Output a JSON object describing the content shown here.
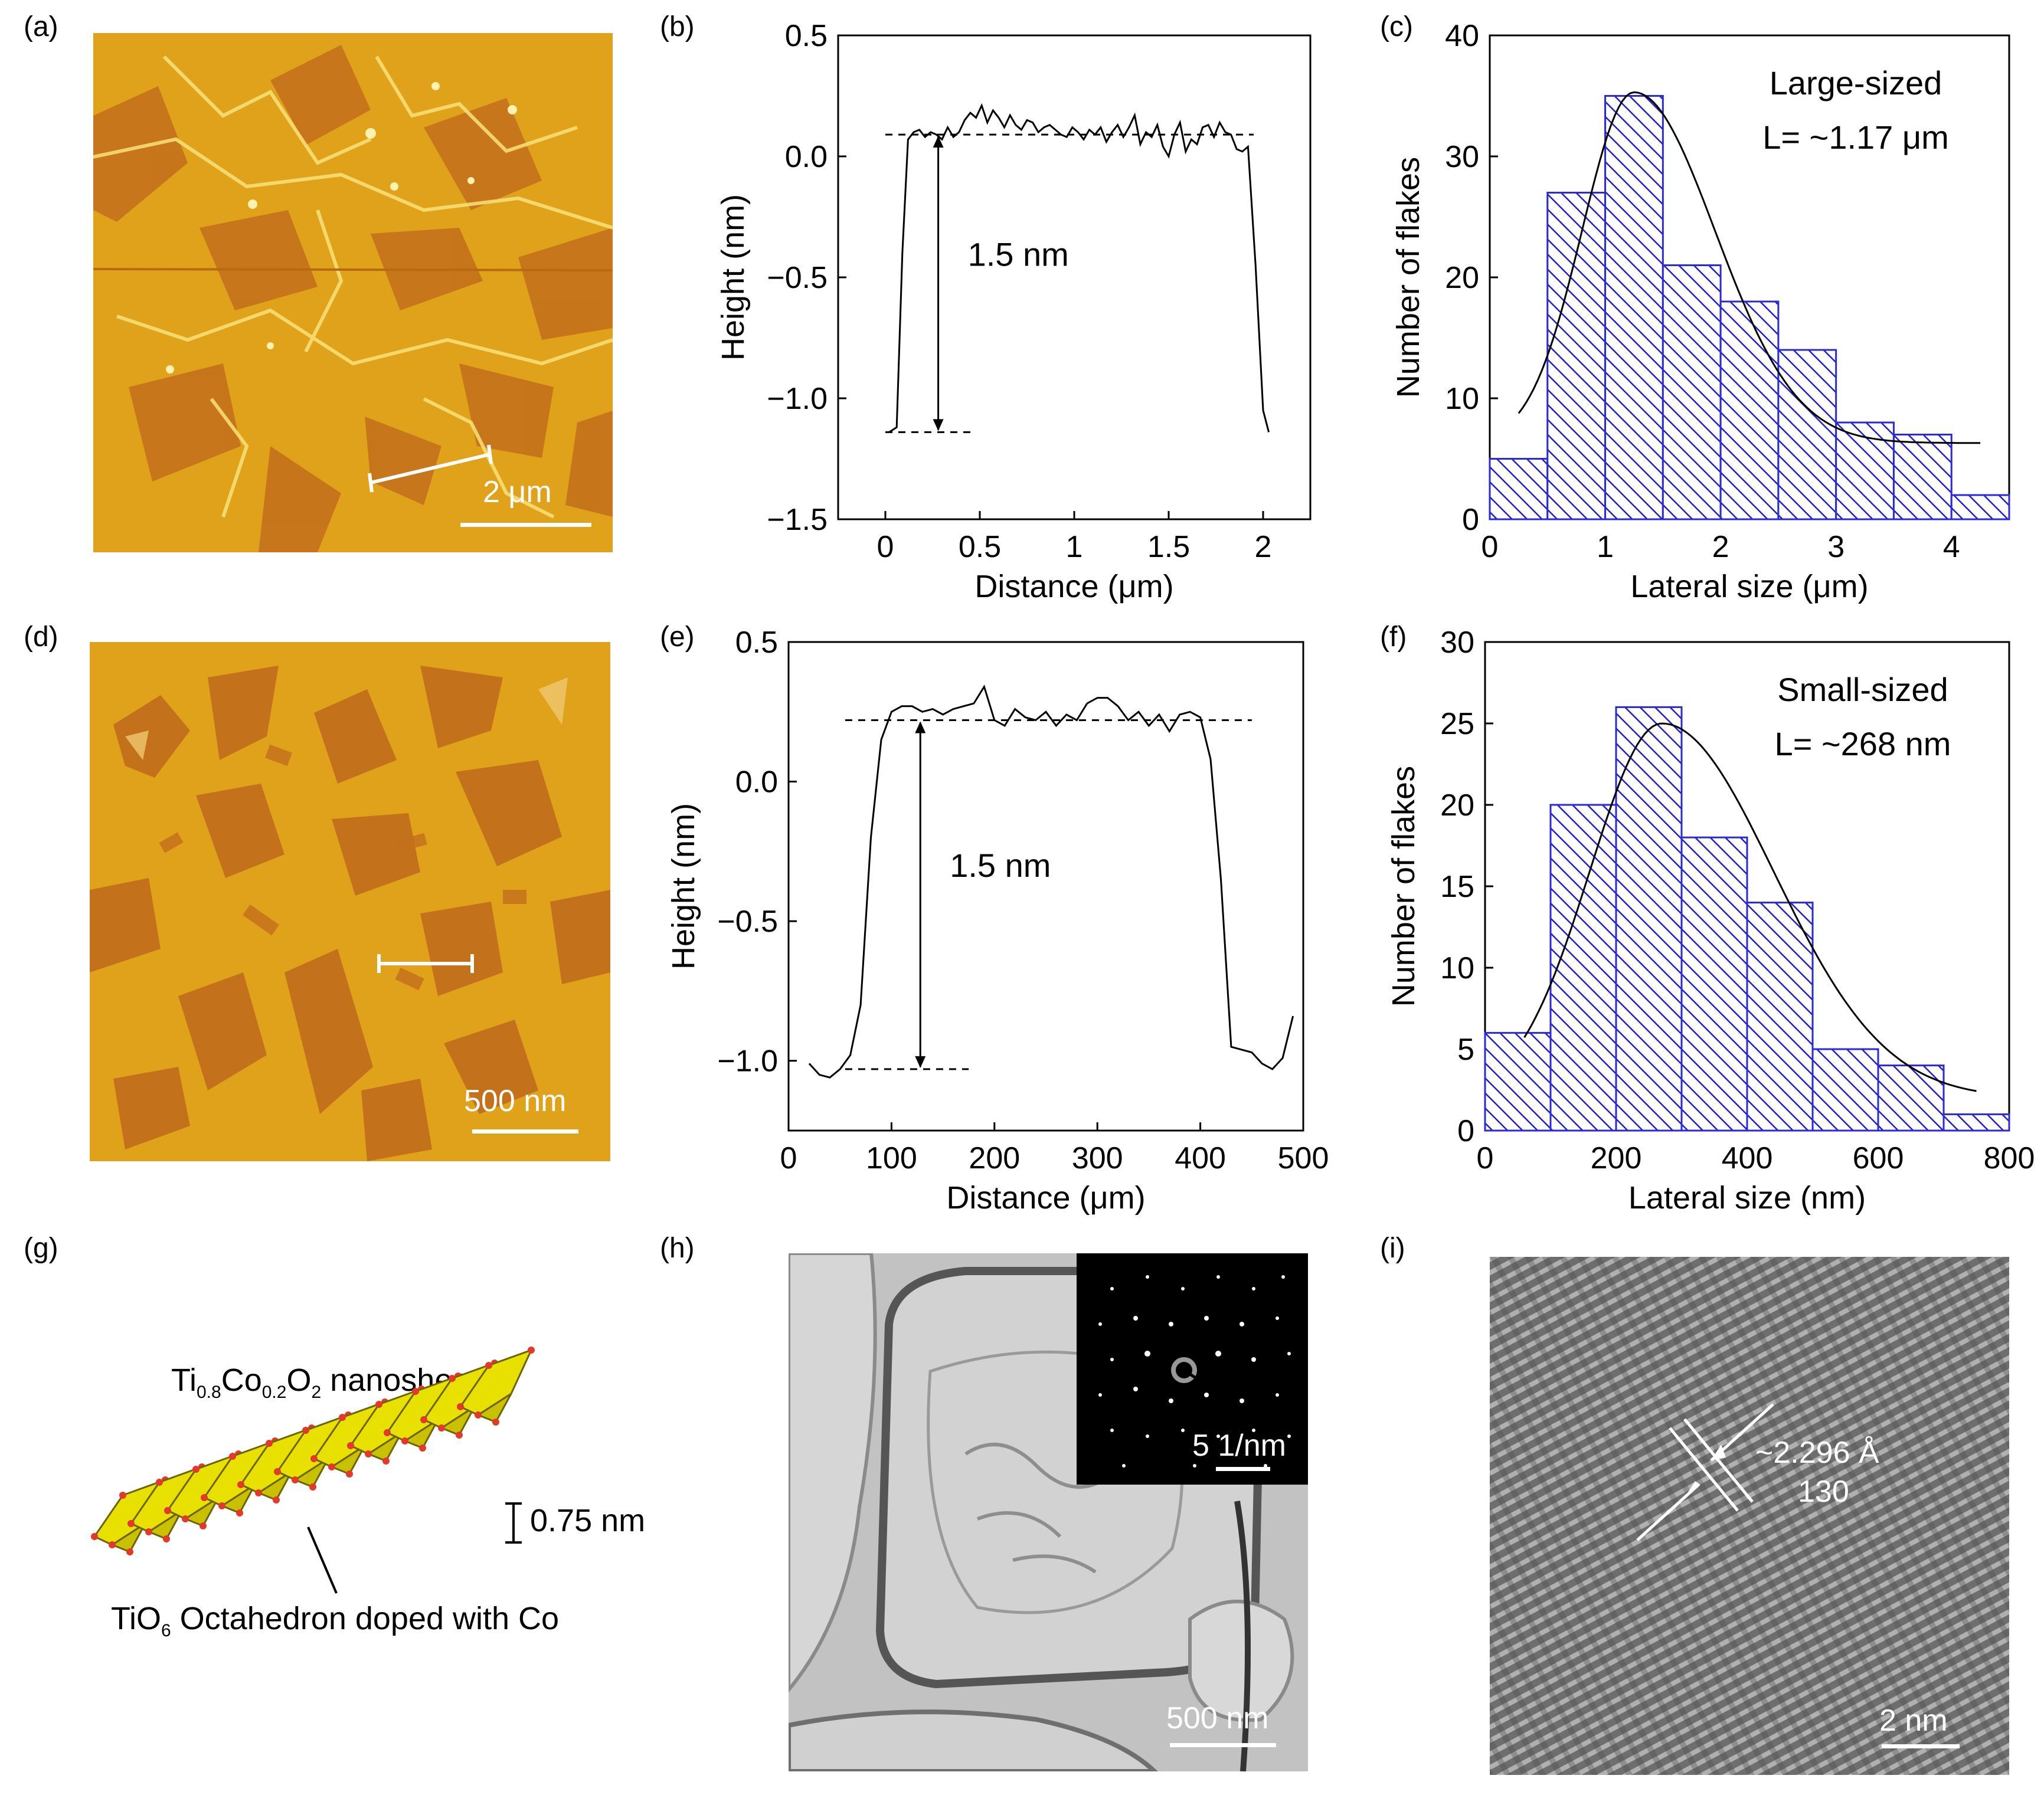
{
  "figure": {
    "panel_labels": [
      "(a)",
      "(b)",
      "(c)",
      "(d)",
      "(e)",
      "(f)",
      "(g)",
      "(h)",
      "(i)"
    ],
    "afm_colors": {
      "base": "#e0a21a",
      "dark": "#c4711c",
      "bright": "#f8e27a"
    },
    "panel_a": {
      "scale_label": "2 μm"
    },
    "panel_d": {
      "scale_label": "500 nm"
    },
    "panel_g": {
      "title_parts": [
        "Ti",
        "0.8",
        "Co",
        "0.2",
        "O",
        "2",
        " nanosheet"
      ],
      "thickness_label": "0.75 nm",
      "caption_parts": [
        "TiO",
        "6",
        " Octahedron doped with Co"
      ],
      "colors": {
        "octa_fill": "#e8e000",
        "octa_edge": "#6b6400",
        "oxygen": "#e23a2a"
      }
    },
    "panel_h": {
      "scale_label": "500 nm",
      "inset_scale_label": "5 1/nm"
    },
    "panel_i": {
      "d_spacing_label": "~2.296 Å",
      "plane_label": "130",
      "scale_label": "2 nm"
    }
  },
  "chart_data": [
    {
      "panel": "b",
      "type": "line",
      "xlabel": "Distance (μm)",
      "ylabel": "Height (nm)",
      "xlim": [
        -0.25,
        2.25
      ],
      "ylim": [
        -1.5,
        0.5
      ],
      "xticks": [
        0,
        0.5,
        1,
        1.5,
        2
      ],
      "xtick_labels": [
        "0",
        "0.5",
        "1",
        "1.5",
        "2"
      ],
      "yticks": [
        -1.5,
        -1.0,
        -0.5,
        0.0,
        0.5
      ],
      "ytick_labels": [
        "−1.5",
        "−1.0",
        "−0.5",
        "0.0",
        "0.5"
      ],
      "annotation": "1.5 nm",
      "levels": {
        "top": 0.09,
        "bottom": -1.14,
        "top_line_x": [
          0.0,
          1.95
        ],
        "bottom_line_x": [
          0.0,
          0.45
        ],
        "arrow_x": 0.28
      },
      "x": [
        0.02,
        0.06,
        0.09,
        0.12,
        0.15,
        0.18,
        0.21,
        0.24,
        0.27,
        0.3,
        0.33,
        0.36,
        0.39,
        0.42,
        0.45,
        0.48,
        0.51,
        0.54,
        0.57,
        0.6,
        0.63,
        0.66,
        0.69,
        0.72,
        0.75,
        0.78,
        0.81,
        0.84,
        0.87,
        0.9,
        0.93,
        0.96,
        0.99,
        1.02,
        1.05,
        1.08,
        1.11,
        1.14,
        1.17,
        1.2,
        1.23,
        1.26,
        1.29,
        1.32,
        1.35,
        1.38,
        1.41,
        1.44,
        1.47,
        1.5,
        1.53,
        1.56,
        1.59,
        1.62,
        1.65,
        1.68,
        1.71,
        1.74,
        1.77,
        1.8,
        1.83,
        1.86,
        1.89,
        1.92,
        1.96,
        2.0,
        2.03
      ],
      "y": [
        -1.14,
        -1.12,
        -0.4,
        0.07,
        0.1,
        0.11,
        0.08,
        0.1,
        0.09,
        0.07,
        0.12,
        0.08,
        0.1,
        0.15,
        0.18,
        0.16,
        0.21,
        0.14,
        0.19,
        0.16,
        0.12,
        0.17,
        0.13,
        0.11,
        0.15,
        0.14,
        0.1,
        0.12,
        0.13,
        0.11,
        0.09,
        0.08,
        0.12,
        0.1,
        0.07,
        0.11,
        0.09,
        0.12,
        0.06,
        0.1,
        0.13,
        0.08,
        0.12,
        0.17,
        0.05,
        0.1,
        0.08,
        0.13,
        0.04,
        0.0,
        0.09,
        0.14,
        0.02,
        0.07,
        0.05,
        0.12,
        0.13,
        0.08,
        0.14,
        0.1,
        0.09,
        0.03,
        0.02,
        0.04,
        -0.45,
        -1.05,
        -1.14
      ]
    },
    {
      "panel": "c",
      "type": "bar",
      "xlabel": "Lateral size (μm)",
      "ylabel": "Number of flakes",
      "xlim": [
        0,
        4.5
      ],
      "ylim": [
        0,
        40
      ],
      "xticks": [
        0,
        1,
        2,
        3,
        4
      ],
      "yticks": [
        0,
        10,
        20,
        30,
        40
      ],
      "bin_edges": [
        0,
        0.5,
        1.0,
        1.5,
        2.0,
        2.5,
        3.0,
        3.5,
        4.0,
        4.5
      ],
      "values": [
        5,
        27,
        35,
        21,
        18,
        14,
        8,
        7,
        2
      ],
      "fit": {
        "x0": 1.25,
        "amplitude": 29,
        "sigma_left": 0.45,
        "sigma_right": 0.7,
        "baseline": 6.3,
        "x_range": [
          0.25,
          4.25
        ]
      },
      "annotation_title": "Large-sized",
      "annotation_value": "L= ~1.17 μm"
    },
    {
      "panel": "e",
      "type": "line",
      "xlabel": "Distance (μm)",
      "ylabel": "Height (nm)",
      "xlim": [
        0,
        500
      ],
      "ylim": [
        -1.25,
        0.5
      ],
      "xticks": [
        0,
        100,
        200,
        300,
        400,
        500
      ],
      "yticks": [
        -1.0,
        -0.5,
        0.0,
        0.5
      ],
      "ytick_labels": [
        "−1.0",
        "−0.5",
        "0.0",
        "0.5"
      ],
      "annotation": "1.5 nm",
      "levels": {
        "top": 0.22,
        "bottom": -1.03,
        "top_line_x": [
          55,
          450
        ],
        "bottom_line_x": [
          55,
          175
        ],
        "arrow_x": 128
      },
      "x": [
        20,
        30,
        40,
        50,
        60,
        70,
        80,
        90,
        100,
        110,
        120,
        130,
        140,
        150,
        160,
        170,
        180,
        190,
        200,
        210,
        220,
        230,
        240,
        250,
        260,
        270,
        280,
        290,
        300,
        310,
        320,
        330,
        340,
        350,
        360,
        370,
        380,
        390,
        400,
        410,
        420,
        430,
        440,
        450,
        460,
        470,
        480,
        490
      ],
      "y": [
        -1.01,
        -1.05,
        -1.06,
        -1.03,
        -0.98,
        -0.8,
        -0.2,
        0.15,
        0.25,
        0.27,
        0.27,
        0.25,
        0.26,
        0.24,
        0.26,
        0.27,
        0.28,
        0.34,
        0.22,
        0.2,
        0.26,
        0.23,
        0.22,
        0.25,
        0.2,
        0.24,
        0.22,
        0.28,
        0.3,
        0.3,
        0.27,
        0.22,
        0.25,
        0.2,
        0.24,
        0.18,
        0.24,
        0.25,
        0.23,
        0.08,
        -0.35,
        -0.95,
        -0.96,
        -0.97,
        -1.01,
        -1.03,
        -0.99,
        -0.84
      ]
    },
    {
      "panel": "f",
      "type": "bar",
      "xlabel": "Lateral size (nm)",
      "ylabel": "Number of flakes",
      "xlim": [
        0,
        800
      ],
      "ylim": [
        0,
        30
      ],
      "xticks": [
        0,
        200,
        400,
        600,
        800
      ],
      "yticks": [
        0,
        5,
        10,
        15,
        20,
        25,
        30
      ],
      "bin_edges": [
        0,
        100,
        200,
        300,
        400,
        500,
        600,
        700,
        800
      ],
      "values": [
        6,
        20,
        26,
        18,
        14,
        5,
        4,
        1
      ],
      "fit": {
        "x0": 270,
        "amplitude": 23,
        "sigma_left": 110,
        "sigma_right": 170,
        "baseline": 2,
        "x_range": [
          60,
          750
        ]
      },
      "annotation_title": "Small-sized",
      "annotation_value": "L= ~268 nm"
    }
  ]
}
